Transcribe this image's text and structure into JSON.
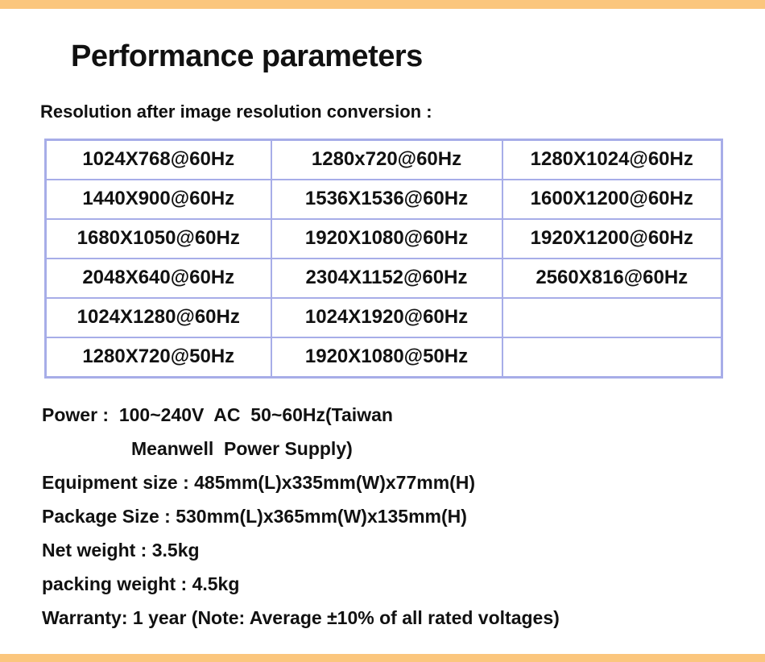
{
  "page": {
    "title": "Performance parameters",
    "table_heading": "Resolution after image resolution conversion :"
  },
  "colors": {
    "accent_bar": "#FBC67D",
    "table_border": "#A7ADE8",
    "text": "#111111"
  },
  "resolution_table": {
    "rows": [
      [
        "1024X768@60Hz",
        "1280x720@60Hz",
        "1280X1024@60Hz"
      ],
      [
        "1440X900@60Hz",
        "1536X1536@60Hz",
        "1600X1200@60Hz"
      ],
      [
        "1680X1050@60Hz",
        "1920X1080@60Hz",
        "1920X1200@60Hz"
      ],
      [
        "2048X640@60Hz",
        "2304X1152@60Hz",
        "2560X816@60Hz"
      ],
      [
        "1024X1280@60Hz",
        "1024X1920@60Hz",
        ""
      ],
      [
        "1280X720@50Hz",
        "1920X1080@50Hz",
        ""
      ]
    ]
  },
  "specs": {
    "lines": [
      "Power :  100~240V  AC  50~60Hz(Taiwan",
      "Meanwell  Power Supply)",
      "Equipment size : 485mm(L)x335mm(W)x77mm(H)",
      "Package Size : 530mm(L)x365mm(W)x135mm(H)",
      "Net weight : 3.5kg",
      "packing weight : 4.5kg",
      "Warranty: 1 year (Note: Average ±10% of all rated voltages)"
    ]
  }
}
